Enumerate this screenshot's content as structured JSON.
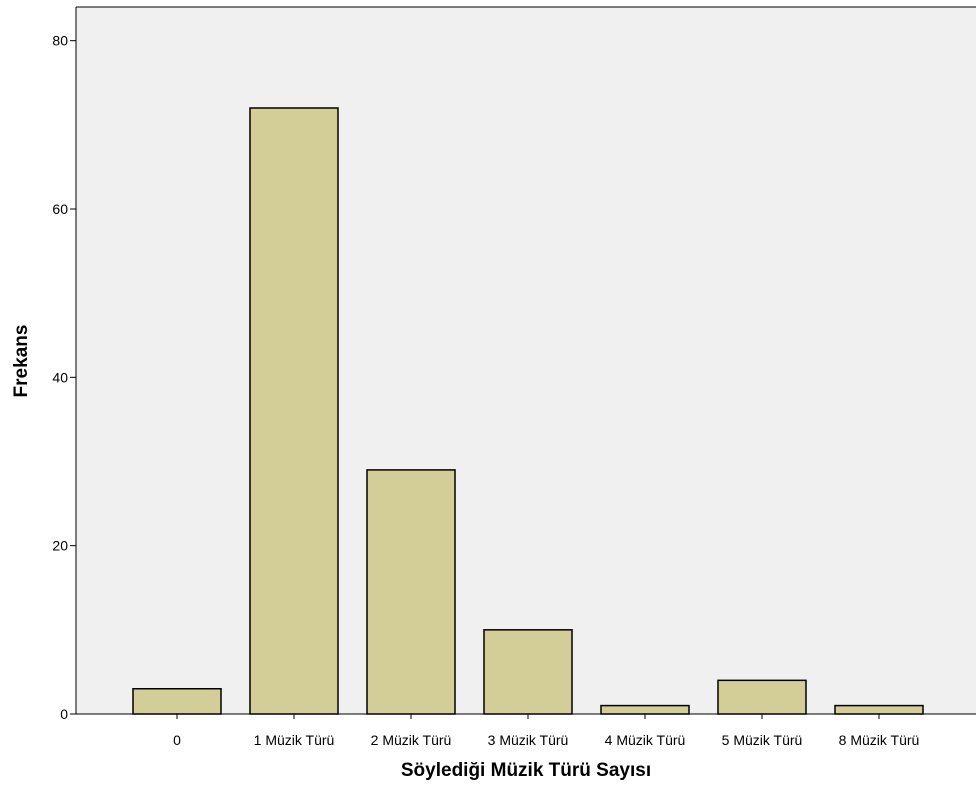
{
  "chart_data": {
    "type": "bar",
    "xlabel": "Söylediği Müzik Türü Sayısı",
    "ylabel": "Frekans",
    "categories": [
      "0",
      "1 Müzik Türü",
      "2 Müzik Türü",
      "3 Müzik Türü",
      "4 Müzik Türü",
      "5 Müzik Türü",
      "8 Müzik Türü"
    ],
    "values": [
      3,
      72,
      29,
      10,
      1,
      4,
      1
    ],
    "ylim": [
      0,
      84
    ],
    "yticks": [
      0,
      20,
      40,
      60,
      80
    ],
    "grid": false,
    "colors": {
      "plot_background": "#f0f0f0",
      "bar_fill": "#d3ce97",
      "bar_stroke": "#000000"
    }
  }
}
